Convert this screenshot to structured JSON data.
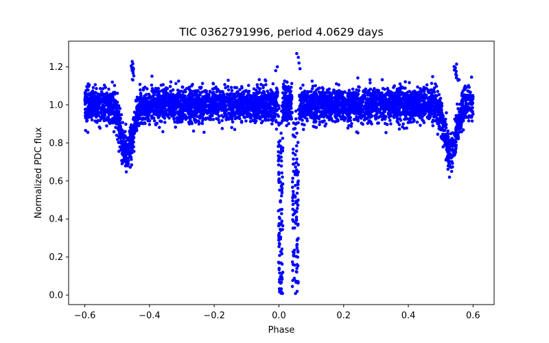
{
  "chart_data": {
    "type": "scatter",
    "title": "TIC 0362791996, period 4.0629 days",
    "xlabel": "Phase",
    "ylabel": "Normalized PDC flux",
    "xlim": [
      -0.65,
      0.665
    ],
    "ylim": [
      -0.05,
      1.335
    ],
    "xticks": [
      -0.6,
      -0.4,
      -0.2,
      0.0,
      0.2,
      0.4,
      0.6
    ],
    "xtick_labels": [
      "−0.6",
      "−0.4",
      "−0.2",
      "0.0",
      "0.2",
      "0.4",
      "0.6"
    ],
    "yticks": [
      0.0,
      0.2,
      0.4,
      0.6,
      0.8,
      1.0,
      1.2
    ],
    "ytick_labels": [
      "0.0",
      "0.2",
      "0.4",
      "0.6",
      "0.8",
      "1.0",
      "1.2"
    ],
    "marker_color": "#0000ff",
    "grid": false,
    "legend": false,
    "phase_range": [
      -0.6,
      0.6
    ],
    "baseline_flux": 1.0,
    "baseline_scatter_range": [
      0.82,
      1.2
    ],
    "features": [
      {
        "name": "primary eclipse",
        "center_phase": 0.0,
        "min_flux": 0.0,
        "ingress_phase": -0.005,
        "egress_phase": 0.012
      },
      {
        "name": "primary eclipse",
        "center_phase": 0.05,
        "min_flux": 0.0,
        "ingress_phase": 0.04,
        "egress_phase": 0.062
      },
      {
        "name": "secondary eclipse",
        "center_phase": -0.47,
        "min_flux": 0.62
      },
      {
        "name": "secondary eclipse",
        "center_phase": 0.53,
        "min_flux": 0.62
      }
    ]
  }
}
